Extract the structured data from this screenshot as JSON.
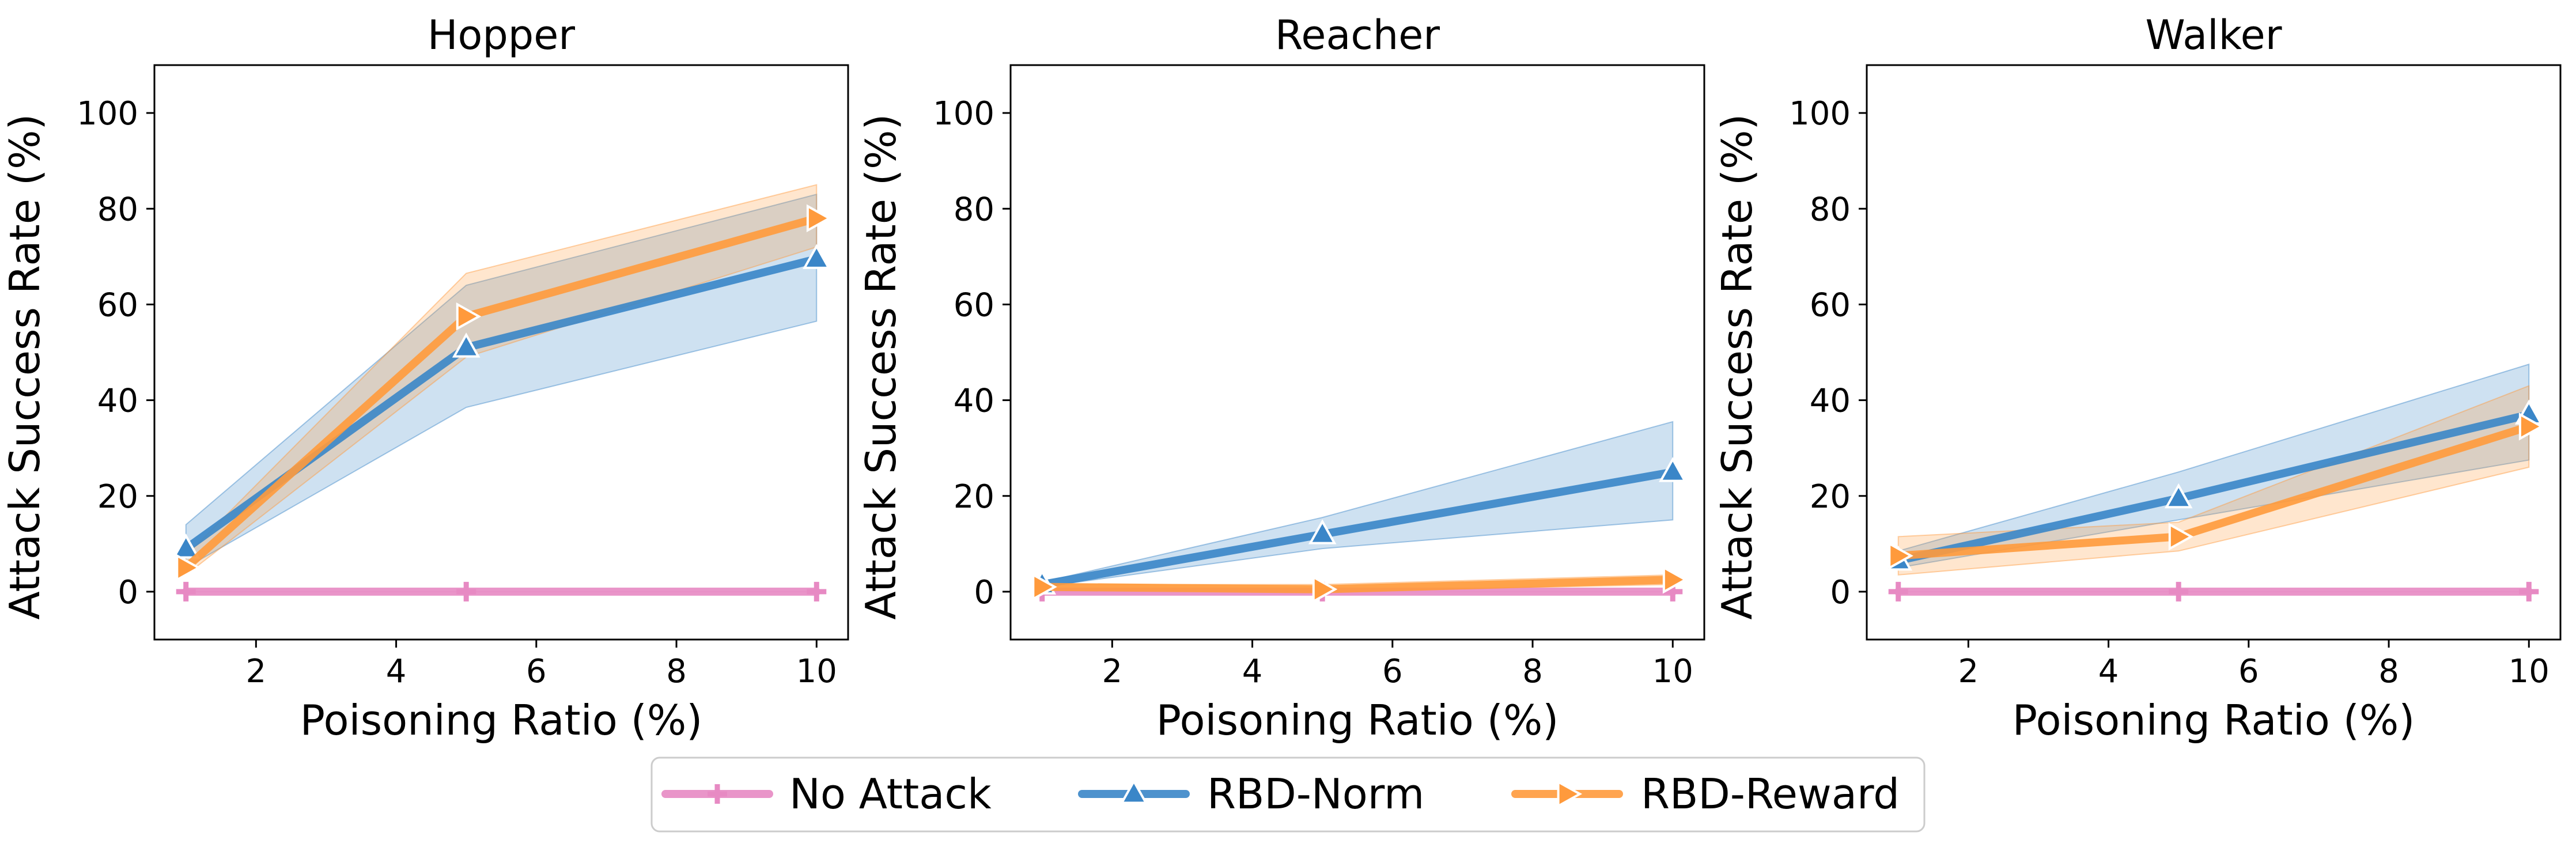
{
  "chart_data": [
    {
      "type": "line",
      "title": "Hopper",
      "xlabel": "Poisoning Ratio (%)",
      "ylabel": "Attack Success Rate (%)",
      "xlim": [
        0.55,
        10.45
      ],
      "ylim": [
        -10,
        110
      ],
      "xticks": [
        2,
        4,
        6,
        8,
        10
      ],
      "yticks": [
        0,
        20,
        40,
        60,
        80,
        100
      ],
      "x": [
        1,
        5,
        10
      ],
      "series": [
        {
          "name": "No Attack",
          "values": [
            0,
            0,
            0
          ],
          "lower": [
            0,
            0,
            0
          ],
          "upper": [
            0,
            0,
            0
          ]
        },
        {
          "name": "RBD-Norm",
          "values": [
            9,
            51,
            69.5
          ],
          "lower": [
            5,
            38.5,
            56.5
          ],
          "upper": [
            14,
            64,
            83
          ]
        },
        {
          "name": "RBD-Reward",
          "values": [
            5,
            57.5,
            78
          ],
          "lower": [
            3.5,
            49,
            72
          ],
          "upper": [
            7.5,
            66.5,
            85
          ]
        }
      ]
    },
    {
      "type": "line",
      "title": "Reacher",
      "xlabel": "Poisoning Ratio (%)",
      "ylabel": "Attack Success Rate (%)",
      "xlim": [
        0.55,
        10.45
      ],
      "ylim": [
        -10,
        110
      ],
      "xticks": [
        2,
        4,
        6,
        8,
        10
      ],
      "yticks": [
        0,
        20,
        40,
        60,
        80,
        100
      ],
      "x": [
        1,
        5,
        10
      ],
      "series": [
        {
          "name": "No Attack",
          "values": [
            0,
            0,
            0
          ],
          "lower": [
            0,
            0,
            0
          ],
          "upper": [
            0,
            0,
            0
          ]
        },
        {
          "name": "RBD-Norm",
          "values": [
            1.5,
            12,
            25
          ],
          "lower": [
            1,
            9,
            15
          ],
          "upper": [
            2,
            15.5,
            35.5
          ]
        },
        {
          "name": "RBD-Reward",
          "values": [
            1,
            0.5,
            2.5
          ],
          "lower": [
            0.5,
            0,
            1.5
          ],
          "upper": [
            1.5,
            1.5,
            3.5
          ]
        }
      ]
    },
    {
      "type": "line",
      "title": "Walker",
      "xlabel": "Poisoning Ratio (%)",
      "ylabel": "Attack Success Rate (%)",
      "xlim": [
        0.55,
        10.45
      ],
      "ylim": [
        -10,
        110
      ],
      "xticks": [
        2,
        4,
        6,
        8,
        10
      ],
      "yticks": [
        0,
        20,
        40,
        60,
        80,
        100
      ],
      "x": [
        1,
        5,
        10
      ],
      "series": [
        {
          "name": "No Attack",
          "values": [
            0,
            0,
            0
          ],
          "lower": [
            0,
            0,
            0
          ],
          "upper": [
            0,
            0,
            0
          ]
        },
        {
          "name": "RBD-Norm",
          "values": [
            6.5,
            19.5,
            37
          ],
          "lower": [
            5,
            15,
            27.5
          ],
          "upper": [
            8.5,
            25,
            47.5
          ]
        },
        {
          "name": "RBD-Reward",
          "values": [
            7.5,
            11.5,
            34.5
          ],
          "lower": [
            3.5,
            8.5,
            26
          ],
          "upper": [
            11.5,
            14.5,
            43
          ]
        }
      ]
    }
  ],
  "legend": [
    {
      "name": "No Attack",
      "color": "#e78ac3",
      "marker": "plus"
    },
    {
      "name": "RBD-Norm",
      "color": "#3a86c8",
      "marker": "triangle-up"
    },
    {
      "name": "RBD-Reward",
      "color": "#ff9a3c",
      "marker": "triangle-right"
    }
  ],
  "colors": {
    "No Attack": "#e78ac3",
    "RBD-Norm": "#3a86c8",
    "RBD-Reward": "#ff9a3c"
  }
}
